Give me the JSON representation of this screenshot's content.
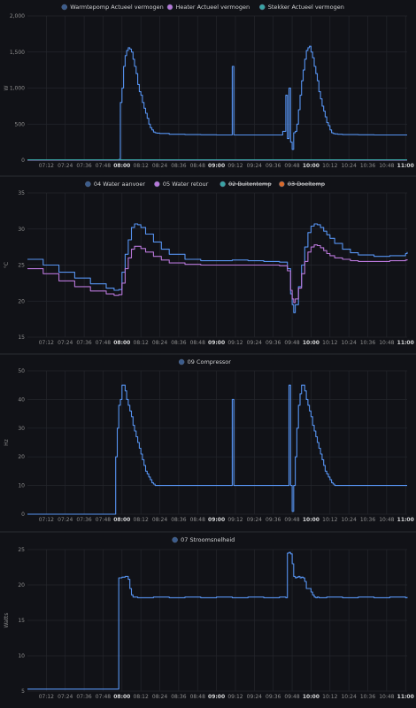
{
  "time_ticks": [
    "07:12",
    "07:24",
    "07:36",
    "07:48",
    "08:00",
    "08:12",
    "08:24",
    "08:36",
    "08:48",
    "09:00",
    "09:12",
    "09:24",
    "09:36",
    "09:48",
    "10:00",
    "10:12",
    "10:24",
    "10:36",
    "10:48",
    "11:00"
  ],
  "bold_ticks": [
    "08:00",
    "09:00",
    "10:00",
    "11:00"
  ],
  "colors": {
    "blue": "#5794f2",
    "blue_dot": "#3b5c8c",
    "purple": "#b877d9",
    "teal": "#39a4a4",
    "orange": "#d96a2a"
  },
  "chart_data": [
    {
      "type": "line",
      "ylabel": "W",
      "ylim": [
        0,
        2000
      ],
      "yticks": [
        0,
        500,
        1000,
        1500,
        2000
      ],
      "ytick_labels": [
        "0",
        "500",
        "1,000",
        "1,500",
        "2,000"
      ],
      "legend": [
        {
          "name": "Warmtepomp Actueel vermogen",
          "color": "#3b5c8c",
          "off": false
        },
        {
          "name": "Heater Actueel vermogen",
          "color": "#b877d9",
          "off": false
        },
        {
          "name": "Stekker Actueel vermogen",
          "color": "#39a4a4",
          "off": false
        }
      ],
      "series": [
        {
          "name": "Warmtepomp Actueel vermogen",
          "color": "#5794f2",
          "x": [
            "07:00",
            "07:57",
            "07:58",
            "07:59",
            "08:00",
            "08:01",
            "08:02",
            "08:03",
            "08:04",
            "08:05",
            "08:06",
            "08:07",
            "08:08",
            "08:09",
            "08:10",
            "08:11",
            "08:12",
            "08:13",
            "08:14",
            "08:15",
            "08:16",
            "08:17",
            "08:18",
            "08:19",
            "08:20",
            "08:21",
            "08:22",
            "08:24",
            "08:30",
            "08:40",
            "08:50",
            "09:00",
            "09:05",
            "09:09",
            "09:10",
            "09:11",
            "09:13",
            "09:20",
            "09:30",
            "09:40",
            "09:42",
            "09:44",
            "09:45",
            "09:46",
            "09:47",
            "09:48",
            "09:49",
            "09:50",
            "09:51",
            "09:52",
            "09:53",
            "09:54",
            "09:55",
            "09:56",
            "09:57",
            "09:58",
            "09:59",
            "10:00",
            "10:01",
            "10:02",
            "10:03",
            "10:04",
            "10:05",
            "10:06",
            "10:07",
            "10:08",
            "10:09",
            "10:10",
            "10:11",
            "10:12",
            "10:13",
            "10:14",
            "10:15",
            "10:17",
            "10:20",
            "10:30",
            "10:40",
            "10:50",
            "11:00",
            "11:01"
          ],
          "y": [
            0,
            0,
            10,
            800,
            1000,
            1300,
            1450,
            1520,
            1560,
            1540,
            1500,
            1400,
            1300,
            1200,
            1050,
            950,
            900,
            800,
            720,
            650,
            580,
            500,
            450,
            420,
            390,
            380,
            375,
            370,
            360,
            355,
            352,
            350,
            350,
            350,
            1300,
            350,
            350,
            350,
            350,
            350,
            400,
            900,
            300,
            1000,
            250,
            150,
            380,
            400,
            500,
            700,
            900,
            1100,
            1250,
            1400,
            1520,
            1560,
            1580,
            1500,
            1420,
            1300,
            1200,
            1100,
            950,
            850,
            750,
            680,
            600,
            520,
            480,
            420,
            380,
            370,
            365,
            360,
            355,
            352,
            350,
            350,
            350,
            350
          ]
        },
        {
          "name": "Heater Actueel vermogen",
          "color": "#b877d9",
          "x": [
            "07:00",
            "11:01"
          ],
          "y": [
            0,
            0
          ]
        },
        {
          "name": "Stekker Actueel vermogen",
          "color": "#39a4a4",
          "x": [
            "07:00",
            "11:01"
          ],
          "y": [
            5,
            5
          ]
        }
      ]
    },
    {
      "type": "line",
      "ylabel": "°C",
      "ylim": [
        15,
        35
      ],
      "yticks": [
        15,
        20,
        25,
        30,
        35
      ],
      "ytick_labels": [
        "15",
        "20",
        "25",
        "30",
        "35"
      ],
      "legend": [
        {
          "name": "04 Water aanvoer",
          "color": "#3b5c8c",
          "off": false
        },
        {
          "name": "05 Water retour",
          "color": "#b877d9",
          "off": false
        },
        {
          "name": "02 Buitentemp",
          "color": "#39a4a4",
          "off": true
        },
        {
          "name": "03 Doeltemp",
          "color": "#d96a2a",
          "off": true
        }
      ],
      "series": [
        {
          "name": "04 Water aanvoer",
          "color": "#5794f2",
          "x": [
            "07:00",
            "07:10",
            "07:20",
            "07:30",
            "07:40",
            "07:50",
            "07:55",
            "07:58",
            "08:00",
            "08:02",
            "08:04",
            "08:06",
            "08:08",
            "08:10",
            "08:12",
            "08:15",
            "08:20",
            "08:25",
            "08:30",
            "08:40",
            "08:50",
            "09:00",
            "09:10",
            "09:20",
            "09:30",
            "09:40",
            "09:45",
            "09:47",
            "09:48",
            "09:49",
            "09:50",
            "09:52",
            "09:54",
            "09:56",
            "09:58",
            "10:00",
            "10:02",
            "10:04",
            "10:06",
            "10:08",
            "10:10",
            "10:12",
            "10:15",
            "10:20",
            "10:25",
            "10:30",
            "10:40",
            "10:50",
            "11:00",
            "11:01"
          ],
          "y": [
            25.8,
            25,
            24,
            23.2,
            22.4,
            21.8,
            21.5,
            21.6,
            24,
            26.5,
            28.5,
            30.2,
            30.7,
            30.6,
            30.2,
            29.3,
            28.2,
            27.2,
            26.5,
            25.8,
            25.6,
            25.6,
            25.7,
            25.6,
            25.5,
            25.4,
            24.5,
            21,
            19.5,
            18.4,
            19.5,
            22,
            25,
            27.5,
            29.5,
            30.4,
            30.7,
            30.6,
            30.2,
            29.7,
            29.2,
            28.7,
            28,
            27.2,
            26.7,
            26.4,
            26.2,
            26.3,
            26.6,
            26.8
          ]
        },
        {
          "name": "05 Water retour",
          "color": "#b877d9",
          "x": [
            "07:00",
            "07:10",
            "07:20",
            "07:30",
            "07:40",
            "07:50",
            "07:55",
            "07:58",
            "08:00",
            "08:02",
            "08:04",
            "08:06",
            "08:08",
            "08:10",
            "08:12",
            "08:15",
            "08:20",
            "08:25",
            "08:30",
            "08:40",
            "08:50",
            "09:00",
            "09:10",
            "09:20",
            "09:30",
            "09:40",
            "09:45",
            "09:47",
            "09:48",
            "09:49",
            "09:50",
            "09:52",
            "09:54",
            "09:56",
            "09:58",
            "10:00",
            "10:02",
            "10:04",
            "10:06",
            "10:08",
            "10:10",
            "10:12",
            "10:15",
            "10:20",
            "10:25",
            "10:30",
            "10:40",
            "10:50",
            "11:00",
            "11:01"
          ],
          "y": [
            24.5,
            23.8,
            22.8,
            22,
            21.4,
            21,
            20.8,
            20.9,
            22.5,
            24.5,
            26,
            27.2,
            27.6,
            27.6,
            27.3,
            26.8,
            26.2,
            25.7,
            25.3,
            25.1,
            25,
            25,
            25,
            25,
            25,
            24.9,
            24.2,
            21.5,
            20.3,
            19.8,
            20.3,
            21.8,
            23.8,
            25.5,
            26.8,
            27.5,
            27.8,
            27.7,
            27.4,
            27,
            26.6,
            26.3,
            26,
            25.8,
            25.6,
            25.5,
            25.5,
            25.6,
            25.7,
            25.8
          ]
        }
      ]
    },
    {
      "type": "line",
      "ylabel": "Hz",
      "ylim": [
        0,
        50
      ],
      "yticks": [
        0,
        10,
        20,
        30,
        40,
        50
      ],
      "ytick_labels": [
        "0",
        "10",
        "20",
        "30",
        "40",
        "50"
      ],
      "legend": [
        {
          "name": "09 Compressor",
          "color": "#3b5c8c",
          "off": false
        }
      ],
      "series": [
        {
          "name": "09 Compressor",
          "color": "#5794f2",
          "x": [
            "07:00",
            "07:55",
            "07:56",
            "07:57",
            "07:58",
            "07:59",
            "08:00",
            "08:01",
            "08:02",
            "08:03",
            "08:04",
            "08:05",
            "08:06",
            "08:07",
            "08:08",
            "08:09",
            "08:10",
            "08:11",
            "08:12",
            "08:13",
            "08:14",
            "08:15",
            "08:16",
            "08:17",
            "08:18",
            "08:19",
            "08:20",
            "08:21",
            "08:22",
            "08:23",
            "09:09",
            "09:10",
            "09:11",
            "09:45",
            "09:46",
            "09:47",
            "09:48",
            "09:49",
            "09:50",
            "09:51",
            "09:52",
            "09:53",
            "09:54",
            "09:55",
            "09:56",
            "09:57",
            "09:58",
            "09:59",
            "10:00",
            "10:01",
            "10:02",
            "10:03",
            "10:04",
            "10:05",
            "10:06",
            "10:07",
            "10:08",
            "10:09",
            "10:10",
            "10:11",
            "10:12",
            "10:13",
            "10:14",
            "10:15",
            "11:01"
          ],
          "y": [
            0,
            0,
            20,
            30,
            38,
            40,
            45,
            45,
            43,
            40,
            38,
            36,
            34,
            31,
            29,
            27,
            25,
            23,
            21,
            19,
            17,
            15,
            14,
            13,
            12,
            11,
            10.5,
            10,
            10,
            10,
            10,
            40,
            10,
            10,
            45,
            10,
            1,
            10,
            20,
            30,
            38,
            42,
            45,
            45,
            43,
            40,
            38,
            36,
            34,
            31,
            29,
            27,
            25,
            23,
            21,
            19,
            17,
            15,
            14,
            13,
            12,
            11,
            10.5,
            10,
            10
          ]
        }
      ]
    },
    {
      "type": "line",
      "ylabel": "Watts",
      "ylim": [
        5,
        25
      ],
      "yticks": [
        5,
        10,
        15,
        20,
        25
      ],
      "ytick_labels": [
        "5",
        "10",
        "15",
        "20",
        "25"
      ],
      "legend": [
        {
          "name": "07 Stroomsnelheid",
          "color": "#3b5c8c",
          "off": false
        }
      ],
      "series": [
        {
          "name": "07 Stroomsnelheid",
          "color": "#5794f2",
          "x": [
            "07:00",
            "07:56",
            "07:57",
            "07:58",
            "08:00",
            "08:02",
            "08:04",
            "08:05",
            "08:06",
            "08:07",
            "08:08",
            "08:10",
            "08:20",
            "08:30",
            "08:40",
            "08:50",
            "09:00",
            "09:10",
            "09:20",
            "09:30",
            "09:40",
            "09:44",
            "09:45",
            "09:46",
            "09:47",
            "09:48",
            "09:49",
            "09:50",
            "09:51",
            "09:52",
            "09:53",
            "09:54",
            "09:55",
            "09:56",
            "09:57",
            "10:00",
            "10:01",
            "10:02",
            "10:03",
            "10:04",
            "10:05",
            "10:06",
            "10:10",
            "10:20",
            "10:30",
            "10:40",
            "10:50",
            "11:00",
            "11:01"
          ],
          "y": [
            5.3,
            5.3,
            5.3,
            21,
            21.1,
            21.2,
            20.8,
            19.5,
            18.6,
            18.3,
            18.3,
            18.2,
            18.3,
            18.2,
            18.3,
            18.2,
            18.3,
            18.2,
            18.3,
            18.2,
            18.3,
            18.2,
            24.5,
            24.6,
            24.4,
            23,
            21.2,
            21,
            21.1,
            21.2,
            21,
            21.1,
            21,
            20.5,
            19.5,
            19,
            18.6,
            18.3,
            18.2,
            18.3,
            18.2,
            18.2,
            18.3,
            18.2,
            18.3,
            18.2,
            18.3,
            18.2,
            18.3
          ]
        }
      ]
    }
  ]
}
